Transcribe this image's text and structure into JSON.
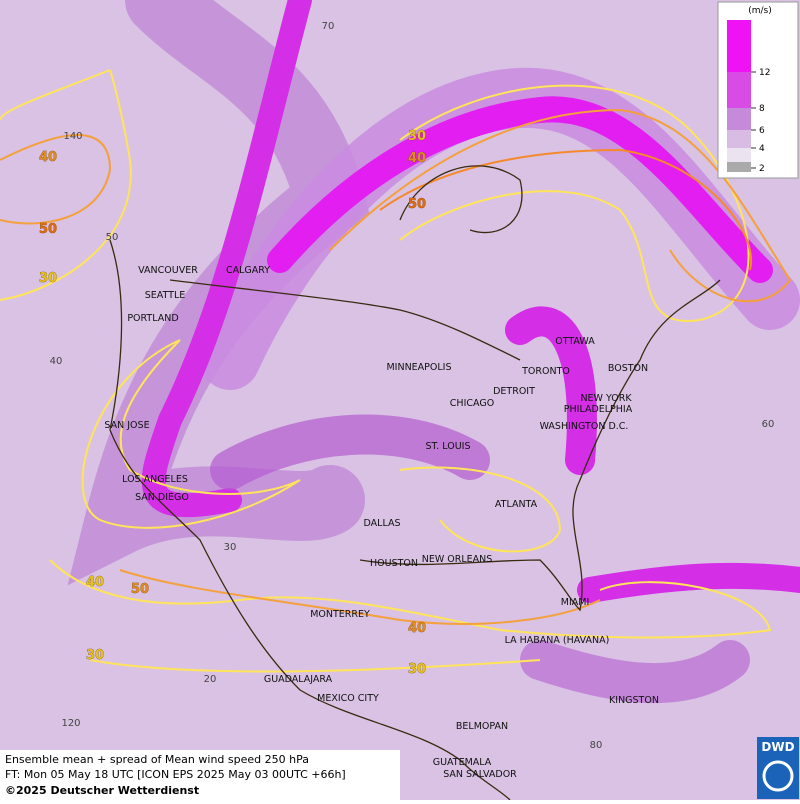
{
  "legend": {
    "unit": "(m/s)",
    "ticks": [
      12,
      8,
      6,
      4,
      2
    ]
  },
  "cities": [
    "VANCOUVER",
    "CALGARY",
    "SEATTLE",
    "PORTLAND",
    "MINNEAPOLIS",
    "CHICAGO",
    "DETROIT",
    "TORONTO",
    "OTTAWA",
    "BOSTON",
    "NEW YORK",
    "PHILADELPHIA",
    "WASHINGTON D.C.",
    "ST. LOUIS",
    "SAN JOSE",
    "LOS ANGELES",
    "SAN DIEGO",
    "DALLAS",
    "ATLANTA",
    "HOUSTON",
    "NEW ORLEANS",
    "MIAMI",
    "MONTERREY",
    "LA HABANA (HAVANA)",
    "GUADALAJARA",
    "MEXICO CITY",
    "KINGSTON",
    "BELMOPAN",
    "GUATEMALA",
    "SAN SALVADOR"
  ],
  "contour_labels": [
    "30",
    "40",
    "50",
    "40",
    "50",
    "30",
    "40",
    "50",
    "30",
    "40",
    "30"
  ],
  "graticule_labels": [
    "70",
    "140",
    "50",
    "40",
    "30",
    "20",
    "120",
    "80",
    "60"
  ],
  "footer": {
    "line1": "Ensemble mean + spread of Mean wind speed 250 hPa",
    "line2": "FT: Mon 05 May 18 UTC [ICON EPS 2025 May 03 00UTC +66h]",
    "line3": "©2025 Deutscher Wetterdienst"
  },
  "logo": "DWD"
}
